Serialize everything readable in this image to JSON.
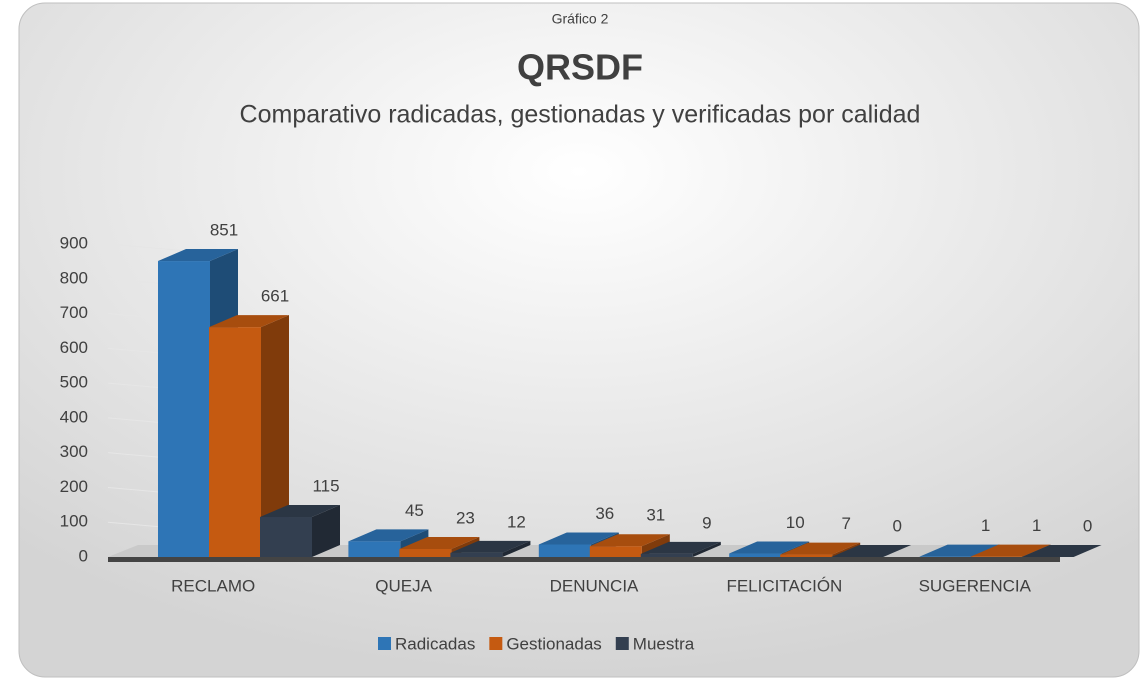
{
  "chart_data": {
    "type": "bar3d",
    "kicker": "Gráfico 2",
    "title": "QRSDF",
    "subtitle": "Comparativo radicadas, gestionadas y verificadas por calidad",
    "categories": [
      "RECLAMO",
      "QUEJA",
      "DENUNCIA",
      "FELICITACIÓN",
      "SUGERENCIA"
    ],
    "series": [
      {
        "name": "Radicadas",
        "color": "#2e75b6",
        "values": [
          851,
          45,
          36,
          10,
          1
        ]
      },
      {
        "name": "Gestionadas",
        "color": "#c55a11",
        "values": [
          661,
          23,
          31,
          7,
          1
        ]
      },
      {
        "name": "Muestra",
        "color": "#333f50",
        "values": [
          115,
          12,
          9,
          0,
          0
        ]
      }
    ],
    "ylim": [
      0,
      900
    ],
    "yticks": [
      0,
      100,
      200,
      300,
      400,
      500,
      600,
      700,
      800,
      900
    ],
    "grid": true,
    "legend": "bottom"
  }
}
